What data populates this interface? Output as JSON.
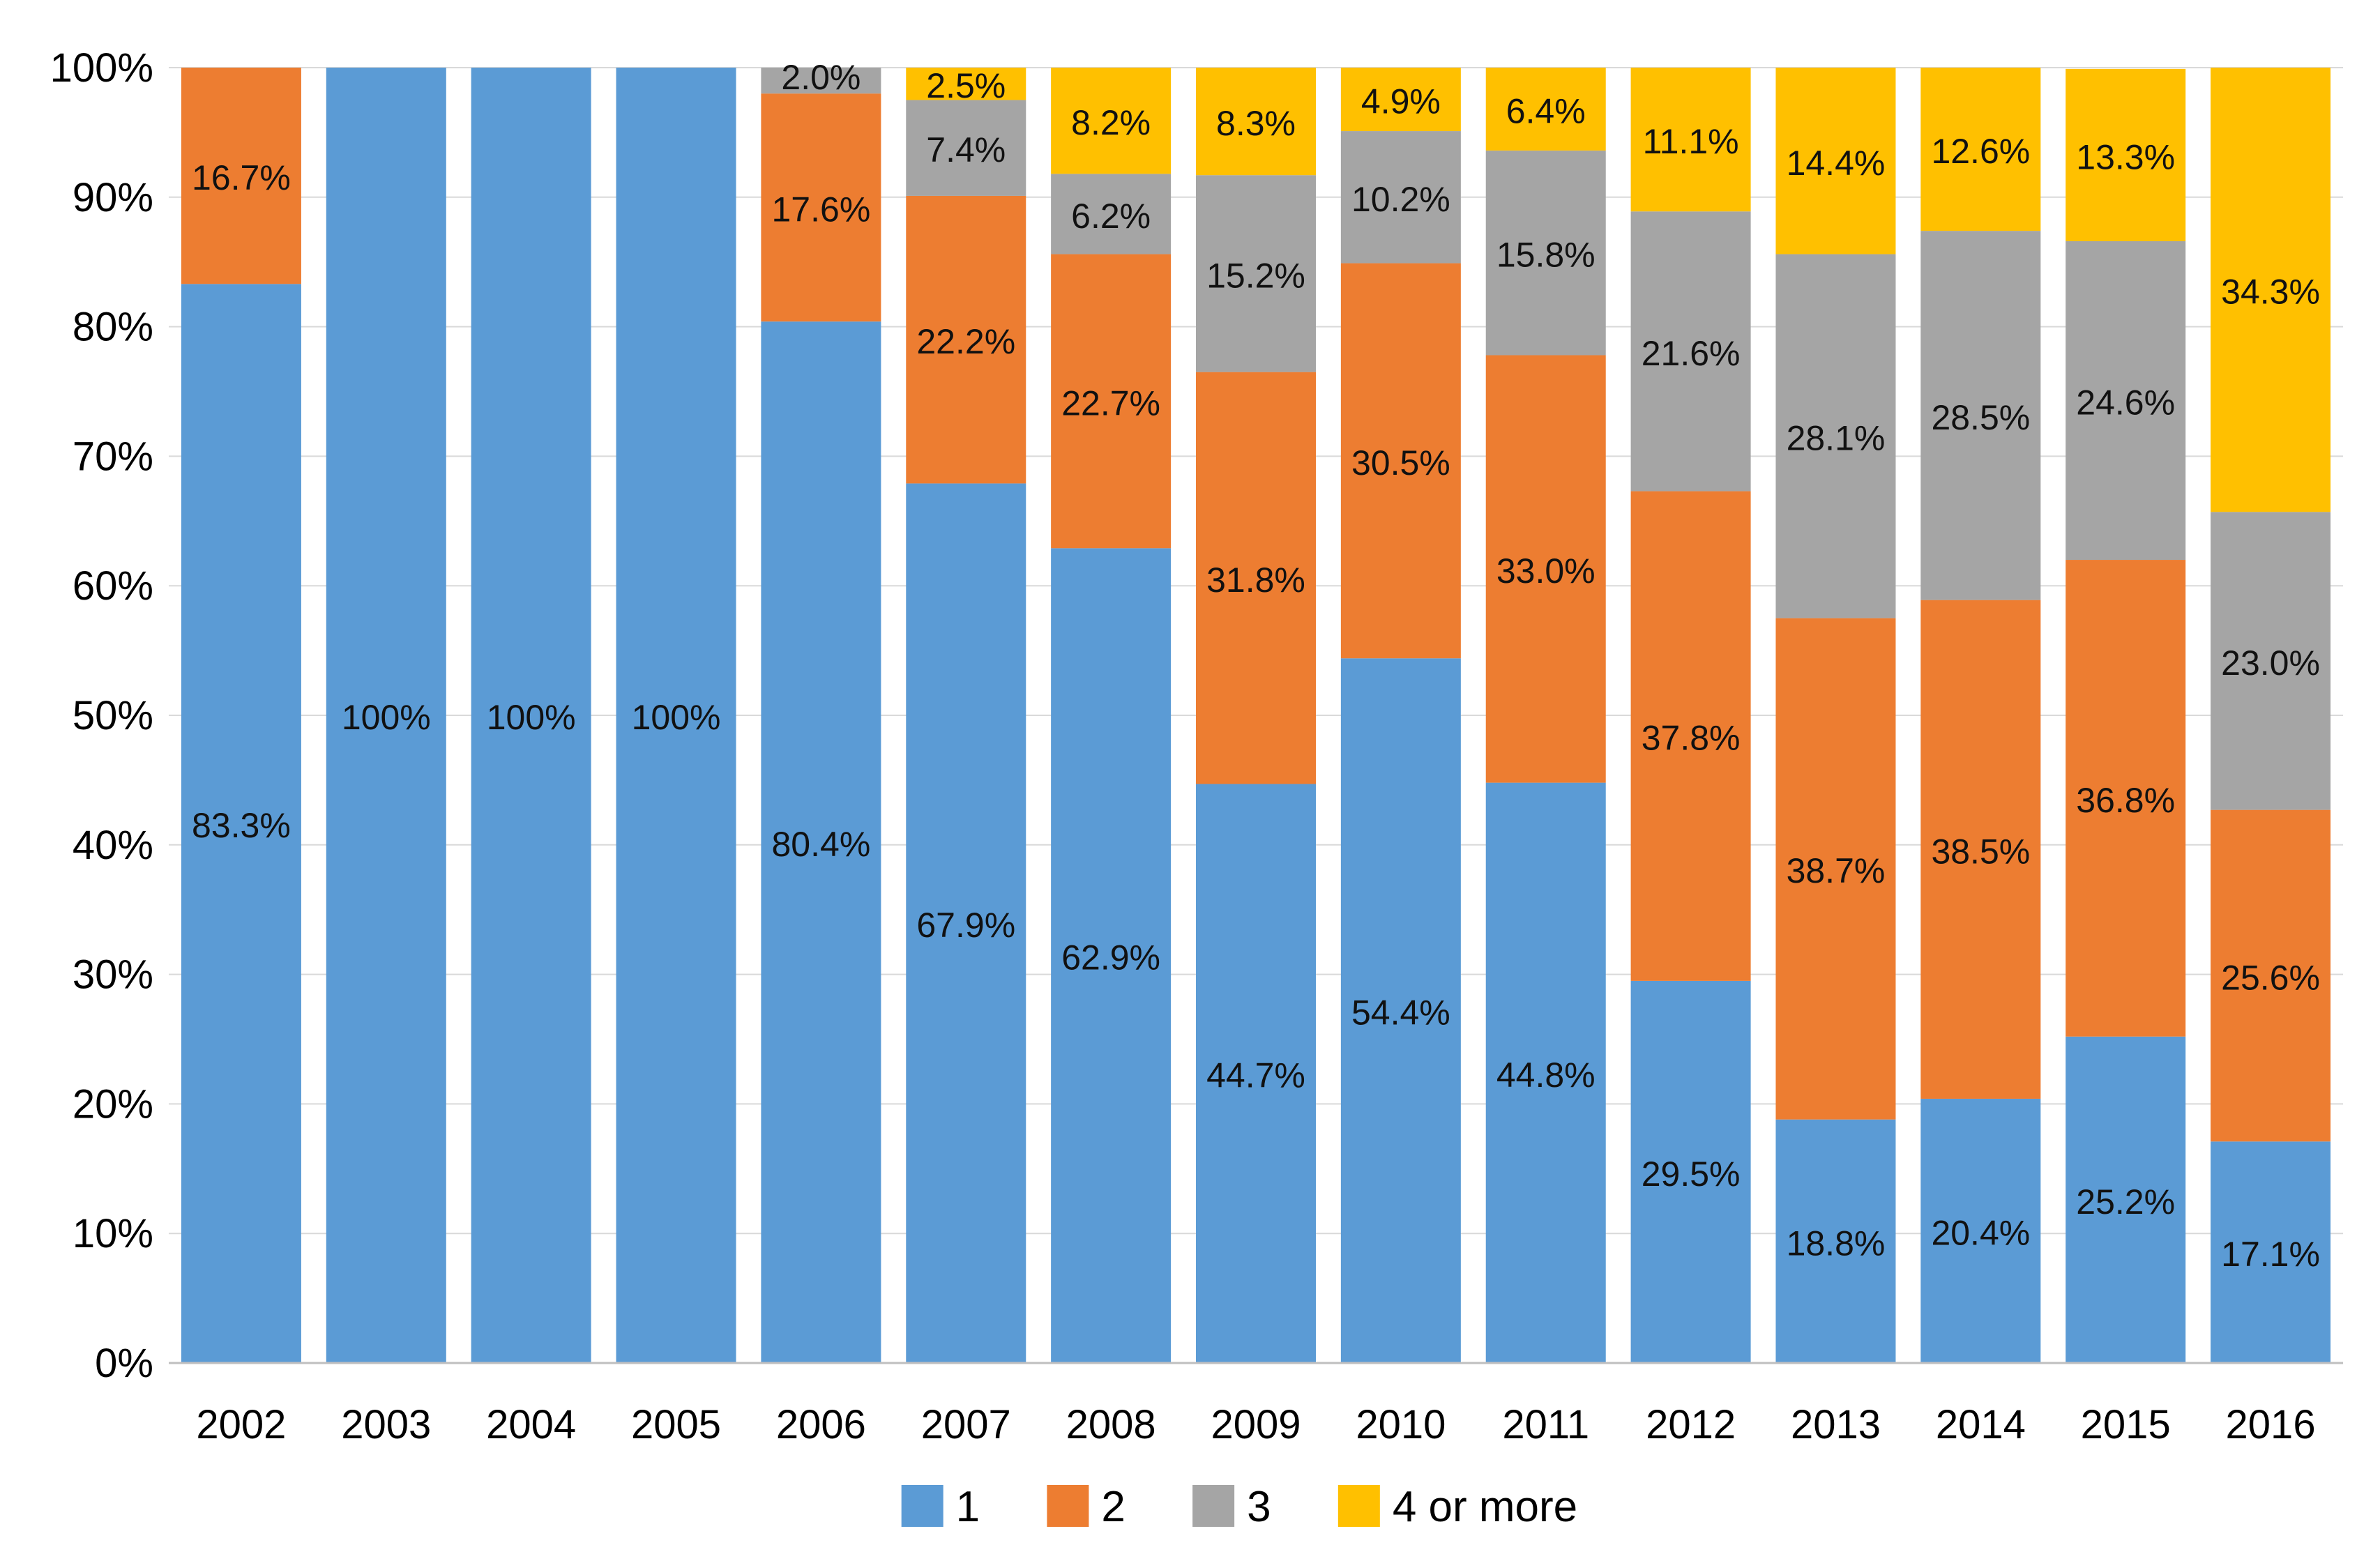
{
  "chart_data": {
    "type": "bar",
    "stacked": true,
    "percent": true,
    "title": "",
    "xlabel": "",
    "ylabel": "",
    "ylim": [
      0,
      100
    ],
    "y_ticks": [
      "0%",
      "10%",
      "20%",
      "30%",
      "40%",
      "50%",
      "60%",
      "70%",
      "80%",
      "90%",
      "100%"
    ],
    "grid": true,
    "legend_position": "bottom",
    "categories": [
      "2002",
      "2003",
      "2004",
      "2005",
      "2006",
      "2007",
      "2008",
      "2009",
      "2010",
      "2011",
      "2012",
      "2013",
      "2014",
      "2015",
      "2016"
    ],
    "series": [
      {
        "name": "1",
        "color": "#5B9BD5",
        "values": [
          83.3,
          100,
          100,
          100,
          80.4,
          67.9,
          62.9,
          44.7,
          54.4,
          44.8,
          29.5,
          18.8,
          20.4,
          25.2,
          17.1
        ],
        "labels": [
          "83.3%",
          "100%",
          "100%",
          "100%",
          "80.4%",
          "67.9%",
          "62.9%",
          "44.7%",
          "54.4%",
          "44.8%",
          "29.5%",
          "18.8%",
          "20.4%",
          "25.2%",
          "17.1%"
        ]
      },
      {
        "name": "2",
        "color": "#ED7D31",
        "values": [
          16.7,
          0,
          0,
          0,
          17.6,
          22.2,
          22.7,
          31.8,
          30.5,
          33.0,
          37.8,
          38.7,
          38.5,
          36.8,
          25.6
        ],
        "labels": [
          "16.7%",
          "",
          "",
          "",
          "17.6%",
          "22.2%",
          "22.7%",
          "31.8%",
          "30.5%",
          "33.0%",
          "37.8%",
          "38.7%",
          "38.5%",
          "36.8%",
          "25.6%"
        ]
      },
      {
        "name": "3",
        "color": "#A5A5A5",
        "values": [
          0,
          0,
          0,
          0,
          2.0,
          7.4,
          6.2,
          15.2,
          10.2,
          15.8,
          21.6,
          28.1,
          28.5,
          24.6,
          23.0
        ],
        "labels": [
          "",
          "",
          "",
          "",
          "2.0%",
          "7.4%",
          "6.2%",
          "15.2%",
          "10.2%",
          "15.8%",
          "21.6%",
          "28.1%",
          "28.5%",
          "24.6%",
          "23.0%"
        ]
      },
      {
        "name": "4 or more",
        "color": "#FFC000",
        "values": [
          0,
          0,
          0,
          0,
          0,
          2.5,
          8.2,
          8.3,
          4.9,
          6.4,
          11.1,
          14.4,
          12.6,
          13.3,
          34.3
        ],
        "labels": [
          "",
          "",
          "",
          "",
          "",
          "2.5%",
          "8.2%",
          "8.3%",
          "4.9%",
          "6.4%",
          "11.1%",
          "14.4%",
          "12.6%",
          "13.3%",
          "34.3%"
        ]
      }
    ]
  }
}
